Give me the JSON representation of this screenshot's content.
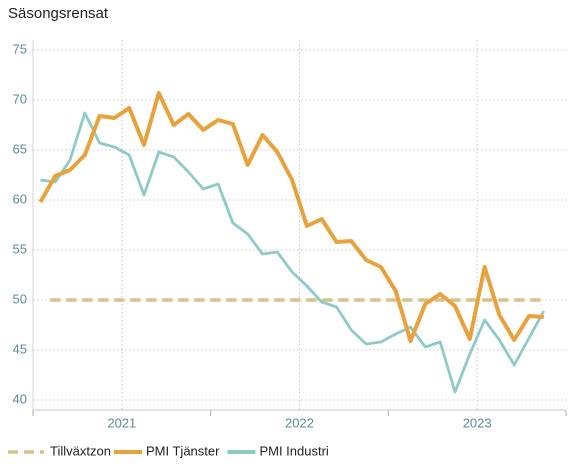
{
  "chart_data": {
    "type": "line",
    "title": "Säsongsrensat",
    "x_labels": [
      "2021",
      "2022",
      "2023"
    ],
    "ylim": [
      39,
      76
    ],
    "yticks": [
      40,
      45,
      50,
      55,
      60,
      65,
      70,
      75
    ],
    "grid": true,
    "legend": "bottom",
    "threshold": {
      "name": "Tillväxtzon",
      "value": 50,
      "color": "#d9c08a"
    },
    "series": [
      {
        "name": "PMI Tjänster",
        "color": "#e9a23b",
        "values": [
          59.8,
          62.4,
          63.0,
          64.5,
          68.4,
          68.2,
          69.2,
          65.5,
          70.7,
          67.5,
          68.6,
          67.0,
          68.0,
          67.6,
          63.5,
          66.5,
          64.8,
          62.0,
          57.4,
          58.1,
          55.8,
          55.9,
          54.0,
          53.3,
          50.9,
          45.9,
          49.6,
          50.6,
          49.4,
          46.1,
          53.3,
          48.5,
          46.0,
          48.4,
          48.3
        ]
      },
      {
        "name": "PMI Industri",
        "color": "#8ecbc6",
        "values": [
          62.0,
          61.8,
          64.0,
          68.7,
          65.7,
          65.3,
          64.5,
          60.5,
          64.8,
          64.3,
          62.8,
          61.1,
          61.6,
          57.7,
          56.6,
          54.6,
          54.8,
          52.8,
          51.4,
          49.8,
          49.3,
          47.0,
          45.6,
          45.8,
          46.6,
          47.3,
          45.3,
          45.8,
          40.8,
          44.6,
          48.0,
          46.0,
          43.5,
          46.2,
          48.9
        ]
      }
    ]
  }
}
